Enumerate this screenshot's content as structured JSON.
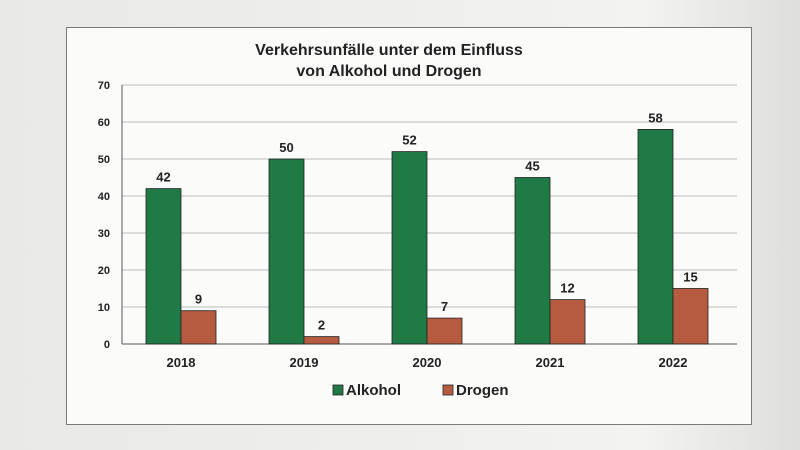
{
  "chart_data": {
    "type": "bar",
    "title": [
      "Verkehrsunfälle unter dem Einfluss",
      "von Alkohol und Drogen"
    ],
    "categories": [
      "2018",
      "2019",
      "2020",
      "2021",
      "2022"
    ],
    "series": [
      {
        "name": "Alkohol",
        "values": [
          42,
          50,
          52,
          45,
          58
        ],
        "color": "#1f7a45"
      },
      {
        "name": "Drogen",
        "values": [
          9,
          2,
          7,
          12,
          15
        ],
        "color": "#b65a40"
      }
    ],
    "ylim": [
      0,
      70
    ],
    "yticks": [
      0,
      10,
      20,
      30,
      40,
      50,
      60,
      70
    ],
    "grid": true,
    "legend_position": "bottom"
  }
}
